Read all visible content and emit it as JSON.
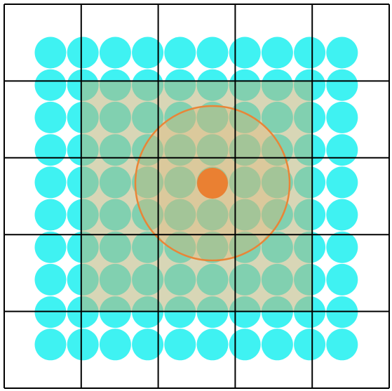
{
  "diagram": {
    "grid": {
      "rows": 5,
      "cols": 5
    },
    "dots": {
      "rows": 10,
      "cols": 10,
      "color": "#3FF2F2"
    },
    "overlay": {
      "cells": 3,
      "color": "#B8B57A",
      "opacity": 0.55
    },
    "target": {
      "ring_color": "#E98537",
      "fill_color": "#E3B36E",
      "center_color": "#EA8032"
    }
  }
}
